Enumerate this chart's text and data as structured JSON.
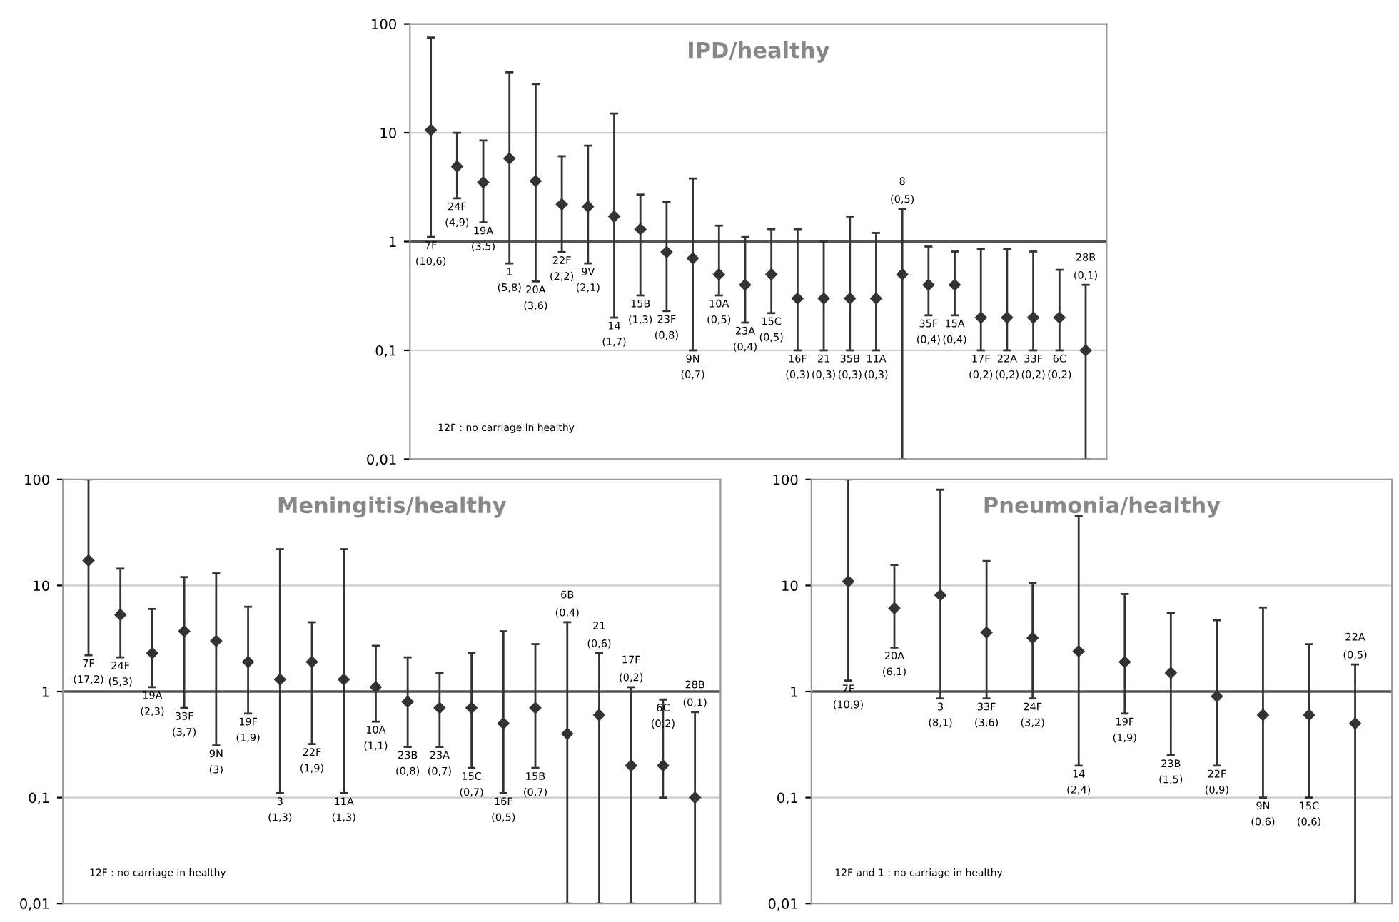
{
  "chart_data": [
    {
      "type": "scatter",
      "title": "IPD/healthy",
      "log": true,
      "grid": "y",
      "marker": "diamond",
      "tick_labels": "y",
      "ylim": [
        0.01,
        100
      ],
      "yticks": [
        {
          "value": 0.01,
          "label": "0,01"
        },
        {
          "value": 0.1,
          "label": "0,1"
        },
        {
          "value": 1,
          "label": "1"
        },
        {
          "value": 10,
          "label": "10"
        },
        {
          "value": 100,
          "label": "100"
        }
      ],
      "ref_lines": [
        {
          "axis": "y",
          "value": 1,
          "color": "#555555"
        }
      ],
      "categories": [
        "7F",
        "24F",
        "19A",
        "1",
        "20A",
        "22F",
        "9V",
        "14",
        "15B",
        "23F",
        "9N",
        "10A",
        "23A",
        "15C",
        "16F",
        "21",
        "35B",
        "11A",
        "8",
        "35F",
        "15A",
        "17F",
        "22A",
        "33F",
        "6C",
        "28B"
      ],
      "series": [
        {
          "color": "#333333",
          "values": [
            10.6,
            4.9,
            3.5,
            5.8,
            3.6,
            2.2,
            2.1,
            1.7,
            1.3,
            0.8,
            0.7,
            0.5,
            0.4,
            0.5,
            0.3,
            0.3,
            0.3,
            0.3,
            0.5,
            0.4,
            0.4,
            0.2,
            0.2,
            0.2,
            0.2,
            0.1
          ],
          "errors": [
            [
              1.1,
              75
            ],
            [
              2.5,
              10
            ],
            [
              1.5,
              8.5
            ],
            [
              0.63,
              36
            ],
            [
              0.43,
              28
            ],
            [
              0.8,
              6.1
            ],
            [
              0.63,
              7.6
            ],
            [
              0.2,
              15
            ],
            [
              0.32,
              2.7
            ],
            [
              0.23,
              2.3
            ],
            [
              0.1,
              3.8
            ],
            [
              0.32,
              1.4
            ],
            [
              0.18,
              1.1
            ],
            [
              0.22,
              1.3
            ],
            [
              0.1,
              1.3
            ],
            [
              0.1,
              1.0
            ],
            [
              0.1,
              1.7
            ],
            [
              0.1,
              1.2
            ],
            [
              0.01,
              2
            ],
            [
              0.21,
              0.9
            ],
            [
              0.21,
              0.81
            ],
            [
              0.1,
              0.85
            ],
            [
              0.1,
              0.85
            ],
            [
              0.1,
              0.81
            ],
            [
              0.1,
              0.55
            ],
            [
              0.01,
              0.4
            ]
          ]
        }
      ],
      "annotations": [
        "12F : no carriage in healthy",
        {
          "text": "(10,6)",
          "x": "7F",
          "y": 1.1
        },
        {
          "text": "(4,9)",
          "x": "24F",
          "y": 2.5
        },
        {
          "text": "(3,5)",
          "x": "19A",
          "y": 1.5
        },
        {
          "text": "(5,8)",
          "x": "1",
          "y": 0.63
        },
        {
          "text": "(3,6)",
          "x": "20A",
          "y": 0.43
        },
        {
          "text": "(2,2)",
          "x": "22F",
          "y": 0.8
        },
        {
          "text": "(2,1)",
          "x": "9V",
          "y": 0.63
        },
        {
          "text": "(1,7)",
          "x": "14",
          "y": 0.2
        },
        {
          "text": "(1,3)",
          "x": "15B",
          "y": 0.32
        },
        {
          "text": "(0,8)",
          "x": "23F",
          "y": 0.23
        },
        {
          "text": "(0,7)",
          "x": "9N",
          "y": 0.1
        },
        {
          "text": "(0,5)",
          "x": "10A",
          "y": 0.32
        },
        {
          "text": "(0,4)",
          "x": "23A",
          "y": 0.18
        },
        {
          "text": "(0,5)",
          "x": "15C",
          "y": 0.22
        },
        {
          "text": "(0,3)",
          "x": "16F",
          "y": 0.1
        },
        {
          "text": "(0,3)",
          "x": "21",
          "y": 0.1
        },
        {
          "text": "(0,3)",
          "x": "35B",
          "y": 0.1
        },
        {
          "text": "(0,3)",
          "x": "11A",
          "y": 0.1
        },
        {
          "text": "(0,5)",
          "x": "8",
          "y": 2
        },
        {
          "text": "(0,4)",
          "x": "35F",
          "y": 0.21
        },
        {
          "text": "(0,4)",
          "x": "15A",
          "y": 0.21
        },
        {
          "text": "(0,2)",
          "x": "17F",
          "y": 0.1
        },
        {
          "text": "(0,2)",
          "x": "22A",
          "y": 0.1
        },
        {
          "text": "(0,2)",
          "x": "33F",
          "y": 0.1
        },
        {
          "text": "(0,2)",
          "x": "6C",
          "y": 0.1
        },
        {
          "text": "(0,1)",
          "x": "28B",
          "y": 0.4
        }
      ]
    },
    {
      "type": "scatter",
      "title": "Meningitis/healthy",
      "log": true,
      "grid": "y",
      "marker": "diamond",
      "tick_labels": "y",
      "ylim": [
        0.01,
        100
      ],
      "yticks": [
        {
          "value": 0.01,
          "label": "0,01"
        },
        {
          "value": 0.1,
          "label": "0,1"
        },
        {
          "value": 1,
          "label": "1"
        },
        {
          "value": 10,
          "label": "10"
        },
        {
          "value": 100,
          "label": "100"
        }
      ],
      "ref_lines": [
        {
          "axis": "y",
          "value": 1,
          "color": "#555555"
        }
      ],
      "categories": [
        "7F",
        "24F",
        "19A",
        "33F",
        "9N",
        "19F",
        "3",
        "22F",
        "11A",
        "10A",
        "23B",
        "23A",
        "15C",
        "16F",
        "15B",
        "6B",
        "21",
        "17F",
        "6C",
        "28B"
      ],
      "series": [
        {
          "color": "#333333",
          "values": [
            17.2,
            5.3,
            2.3,
            3.7,
            3,
            1.9,
            1.3,
            1.9,
            1.3,
            1.1,
            0.8,
            0.7,
            0.7,
            0.5,
            0.7,
            0.4,
            0.6,
            0.2,
            0.2,
            0.1
          ],
          "errors": [
            [
              2.2,
              100
            ],
            [
              2.1,
              14.4
            ],
            [
              1.1,
              6
            ],
            [
              0.7,
              12
            ],
            [
              0.31,
              13
            ],
            [
              0.62,
              6.3
            ],
            [
              0.11,
              22
            ],
            [
              0.32,
              4.5
            ],
            [
              0.11,
              22
            ],
            [
              0.52,
              2.7
            ],
            [
              0.3,
              2.1
            ],
            [
              0.3,
              1.5
            ],
            [
              0.19,
              2.3
            ],
            [
              0.11,
              3.7
            ],
            [
              0.19,
              2.8
            ],
            [
              0.01,
              4.5
            ],
            [
              0.01,
              2.3
            ],
            [
              0.01,
              1.1
            ],
            [
              0.1,
              0.84
            ],
            [
              0.01,
              0.64
            ]
          ]
        }
      ],
      "annotations": [
        "12F : no carriage in healthy",
        {
          "text": "(17,2)",
          "x": "7F",
          "y": 2.2
        },
        {
          "text": "(5,3)",
          "x": "24F",
          "y": 2.1
        },
        {
          "text": "(2,3)",
          "x": "19A",
          "y": 1.1
        },
        {
          "text": "(3,7)",
          "x": "33F",
          "y": 0.7
        },
        {
          "text": "(3)",
          "x": "9N",
          "y": 0.31
        },
        {
          "text": "(1,9)",
          "x": "19F",
          "y": 0.62
        },
        {
          "text": "(1,3)",
          "x": "3",
          "y": 0.11
        },
        {
          "text": "(1,9)",
          "x": "22F",
          "y": 0.32
        },
        {
          "text": "(1,3)",
          "x": "11A",
          "y": 0.11
        },
        {
          "text": "(1,1)",
          "x": "10A",
          "y": 0.52
        },
        {
          "text": "(0,8)",
          "x": "23B",
          "y": 0.3
        },
        {
          "text": "(0,7)",
          "x": "23A",
          "y": 0.3
        },
        {
          "text": "(0,7)",
          "x": "15C",
          "y": 0.19
        },
        {
          "text": "(0,5)",
          "x": "16F",
          "y": 0.11
        },
        {
          "text": "(0,7)",
          "x": "15B",
          "y": 0.19
        },
        {
          "text": "(0,4)",
          "x": "6B",
          "y": 4.5
        },
        {
          "text": "(0,6)",
          "x": "21",
          "y": 2.3
        },
        {
          "text": "(0,2)",
          "x": "17F",
          "y": 1.1
        },
        {
          "text": "(0,2)",
          "x": "6C",
          "y": 0.84
        },
        {
          "text": "(0,1)",
          "x": "28B",
          "y": 0.64
        }
      ]
    },
    {
      "type": "scatter",
      "title": "Pneumonia/healthy",
      "log": true,
      "grid": "y",
      "marker": "diamond",
      "tick_labels": "y",
      "ylim": [
        0.01,
        100
      ],
      "yticks": [
        {
          "value": 0.01,
          "label": "0,01"
        },
        {
          "value": 0.1,
          "label": "0,1"
        },
        {
          "value": 1,
          "label": "1"
        },
        {
          "value": 10,
          "label": "10"
        },
        {
          "value": 100,
          "label": "100"
        }
      ],
      "ref_lines": [
        {
          "axis": "y",
          "value": 1,
          "color": "#555555"
        }
      ],
      "categories": [
        "7F",
        "20A",
        "3",
        "33F",
        "24F",
        "14",
        "19F",
        "23B",
        "22F",
        "9N",
        "15C",
        "22A"
      ],
      "series": [
        {
          "color": "#333333",
          "values": [
            10.9,
            6.1,
            8.1,
            3.6,
            3.2,
            2.4,
            1.9,
            1.5,
            0.9,
            0.6,
            0.6,
            0.5
          ],
          "errors": [
            [
              1.27,
              100
            ],
            [
              2.6,
              15.6
            ],
            [
              0.86,
              80
            ],
            [
              0.86,
              17
            ],
            [
              0.86,
              10.6
            ],
            [
              0.2,
              45
            ],
            [
              0.62,
              8.3
            ],
            [
              0.25,
              5.5
            ],
            [
              0.2,
              4.7
            ],
            [
              0.1,
              6.2
            ],
            [
              0.1,
              2.8
            ],
            [
              0.01,
              1.8
            ]
          ]
        }
      ],
      "annotations": [
        "12F and 1 : no carriage in healthy",
        {
          "text": "(10,9)",
          "x": "7F",
          "y": 1.27
        },
        {
          "text": "(6,1)",
          "x": "20A",
          "y": 2.6
        },
        {
          "text": "(8,1)",
          "x": "3",
          "y": 0.86
        },
        {
          "text": "(3,6)",
          "x": "33F",
          "y": 0.86
        },
        {
          "text": "(3,2)",
          "x": "24F",
          "y": 0.86
        },
        {
          "text": "(2,4)",
          "x": "14",
          "y": 0.2
        },
        {
          "text": "(1,9)",
          "x": "19F",
          "y": 0.62
        },
        {
          "text": "(1,5)",
          "x": "23B",
          "y": 0.25
        },
        {
          "text": "(0,9)",
          "x": "22F",
          "y": 0.2
        },
        {
          "text": "(0,6)",
          "x": "9N",
          "y": 0.1
        },
        {
          "text": "(0,6)",
          "x": "15C",
          "y": 0.1
        },
        {
          "text": "(0,5)",
          "x": "22A",
          "y": 1.8
        }
      ]
    }
  ]
}
